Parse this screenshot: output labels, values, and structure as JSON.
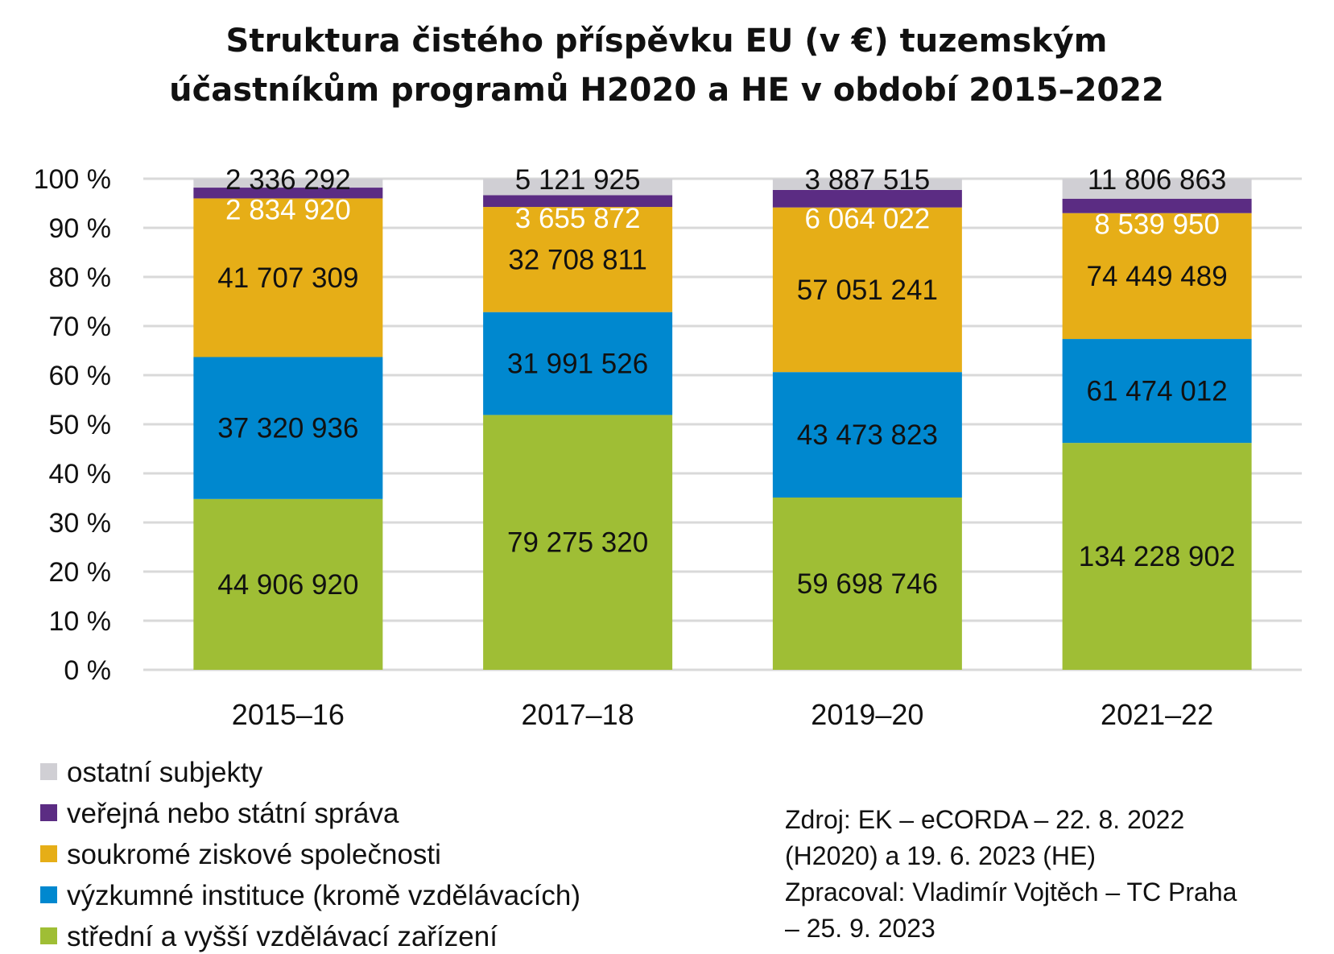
{
  "chart_data": {
    "type": "bar",
    "stacked": "percent",
    "title": [
      "Struktura čistého příspěvku EU (v €) tuzemským",
      "účastníkům programů H2020 a HE v období 2015–2022"
    ],
    "categories": [
      "2015–16",
      "2017–18",
      "2019–20",
      "2021–22"
    ],
    "series": [
      {
        "name": "střední a vyšší vzdělávací zařízení",
        "color": "#9fbe35",
        "label_color": "#111111",
        "values": [
          44906920,
          79275320,
          59698746,
          134228902
        ],
        "labels": [
          "44 906 920",
          "79 275 320",
          "59 698 746",
          "134 228 902"
        ]
      },
      {
        "name": "výzkumné instituce (kromě vzdělávacích)",
        "color": "#0088cf",
        "label_color": "#111111",
        "values": [
          37320936,
          31991526,
          43473823,
          61474012
        ],
        "labels": [
          "37 320 936",
          "31 991 526",
          "43 473 823",
          "61 474 012"
        ]
      },
      {
        "name": "soukromé ziskové společnosti",
        "color": "#e6ae17",
        "label_color": "#111111",
        "values": [
          41707309,
          32708811,
          57051241,
          74449489
        ],
        "labels": [
          "41 707 309",
          "32 708 811",
          "57 051 241",
          "74 449 489"
        ]
      },
      {
        "name": "veřejná nebo státní správa",
        "color": "#5b2c83",
        "label_color": "#ffffff",
        "values": [
          2834920,
          3655872,
          6064022,
          8539950
        ],
        "labels": [
          "2 834 920",
          "3 655 872",
          "6 064 022",
          "8 539 950"
        ]
      },
      {
        "name": "ostatní subjekty",
        "color": "#d0cfd4",
        "label_color": "#111111",
        "values": [
          2336292,
          5121925,
          3887515,
          11806863
        ],
        "labels": [
          "2 336 292",
          "5 121 925",
          "3 887 515",
          "11 806 863"
        ]
      }
    ],
    "yticks": [
      "0 %",
      "10 %",
      "20 %",
      "30 %",
      "40 %",
      "50 %",
      "60 %",
      "70 %",
      "80 %",
      "90 %",
      "100 %"
    ],
    "ylim": [
      0,
      100
    ],
    "grid": true,
    "legend_placement": "bottom-left",
    "legend_order": [
      "ostatní subjekty",
      "veřejná nebo státní správa",
      "soukromé ziskové společnosti",
      "výzkumné instituce (kromě vzdělávacích)",
      "střední a vyšší vzdělávací zařízení"
    ]
  },
  "source": [
    "Zdroj: EK – eCORDA – 22. 8. 2022",
    "(H2020) a 19. 6. 2023 (HE)",
    "Zpracoval: Vladimír Vojtěch – TC Praha",
    "– 25. 9. 2023"
  ]
}
